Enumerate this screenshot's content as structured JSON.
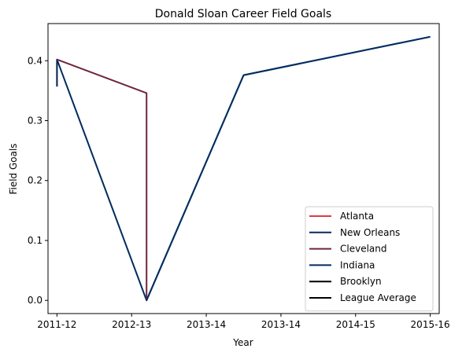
{
  "chart_data": {
    "type": "line",
    "title": "Donald Sloan  Career Field Goals",
    "xlabel": "Year",
    "ylabel": "Field Goals",
    "x_tick_labels": [
      "2011-12",
      "2012-13",
      "2013-14",
      "2013-14",
      "2014-15",
      "2015-16"
    ],
    "xlim": [
      -0.12,
      5.12
    ],
    "ylim": [
      -0.022,
      0.462
    ],
    "y_ticks": [
      0.0,
      0.1,
      0.2,
      0.3,
      0.4
    ],
    "y_tick_labels": [
      "0.0",
      "0.1",
      "0.2",
      "0.3",
      "0.4"
    ],
    "grid": false,
    "legend_position": "lower-right",
    "series": [
      {
        "name": "Atlanta",
        "color": "#e03a3e",
        "x": [
          0,
          0
        ],
        "y": [
          0.357,
          0.402
        ]
      },
      {
        "name": "New Orleans",
        "color": "#002b5c",
        "x": [
          0,
          0,
          1.2,
          2.5,
          5.0
        ],
        "y": [
          0.357,
          0.402,
          0.0,
          0.376,
          0.44
        ]
      },
      {
        "name": "Cleveland",
        "color": "#6f263d",
        "x": [
          0,
          1.2,
          1.2
        ],
        "y": [
          0.402,
          0.346,
          0.0
        ]
      },
      {
        "name": "Indiana",
        "color": "#002d62",
        "x": [
          1.2,
          2.5,
          5.0
        ],
        "y": [
          0.0,
          0.376,
          0.44
        ]
      },
      {
        "name": "Brooklyn",
        "color": "#000000",
        "x": [],
        "y": []
      },
      {
        "name": "League Average",
        "color": "#000000",
        "x": [],
        "y": []
      }
    ]
  }
}
